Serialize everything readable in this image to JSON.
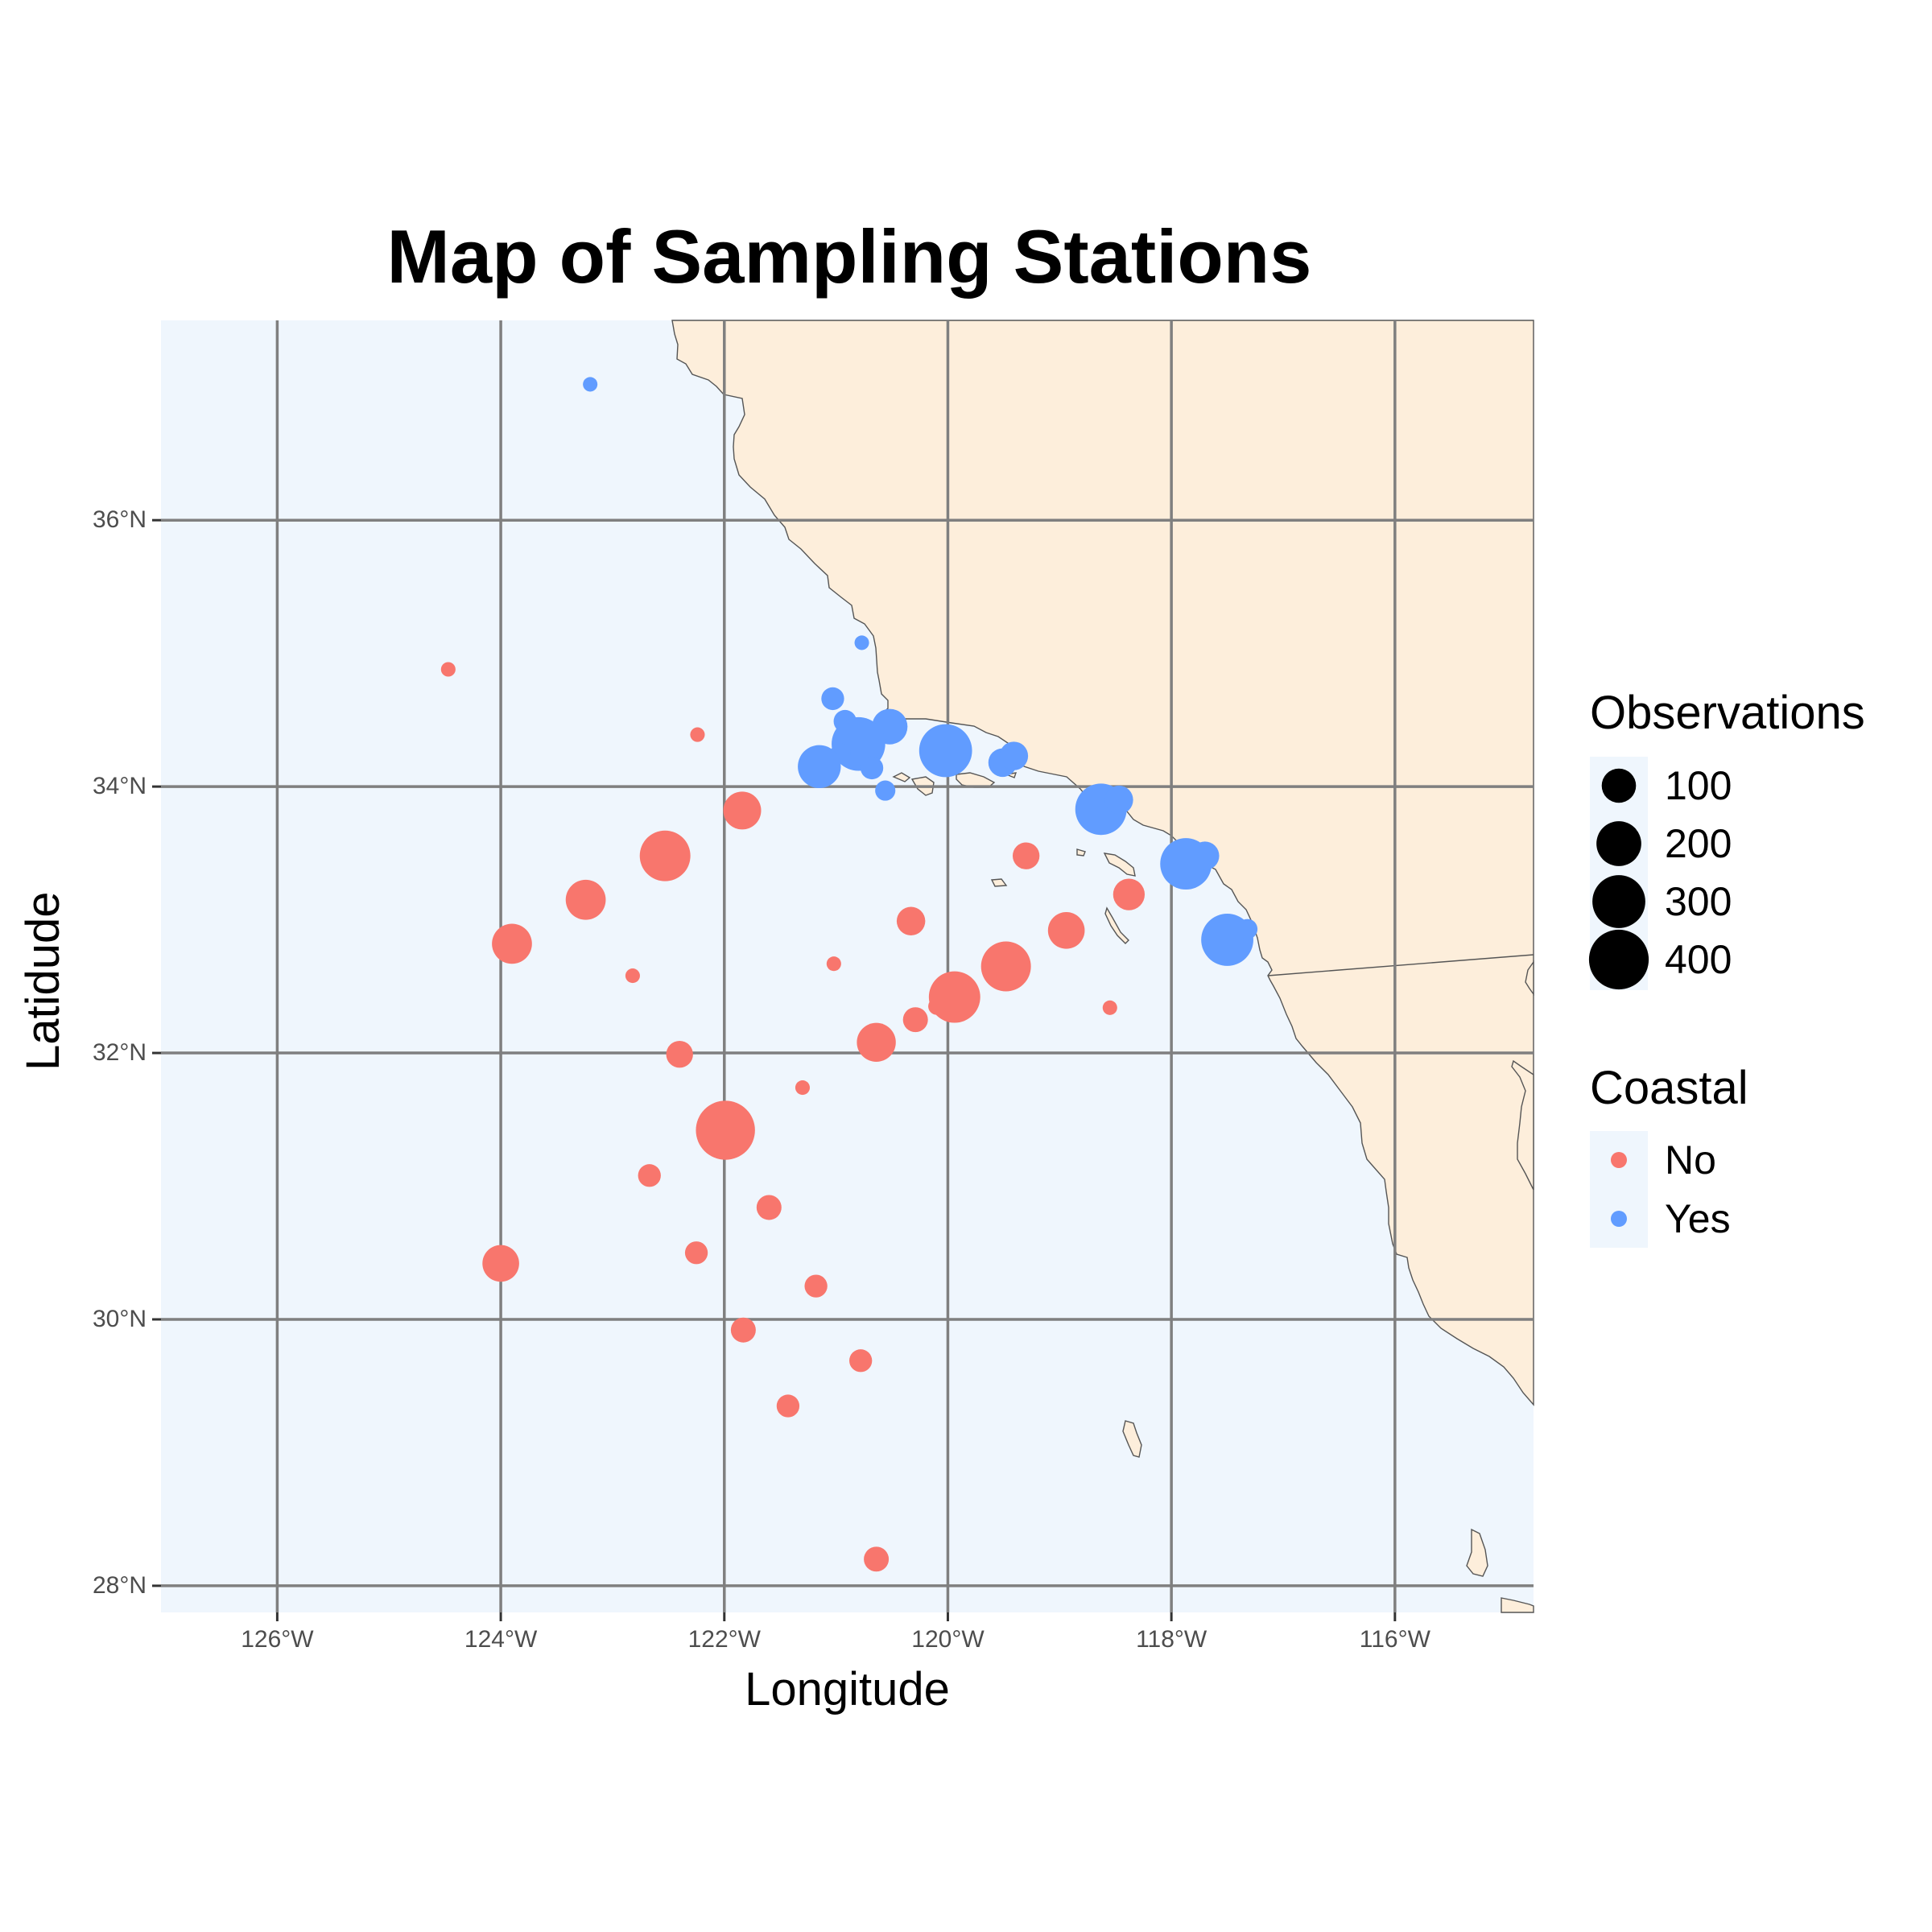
{
  "title": "Map of Sampling Stations",
  "xlabel": "Longitude",
  "ylabel": "Latidude",
  "x_ticks": [
    "126°W",
    "124°W",
    "122°W",
    "120°W",
    "118°W",
    "116°W"
  ],
  "y_ticks": [
    "36°N",
    "34°N",
    "32°N",
    "30°N",
    "28°N"
  ],
  "colors": {
    "ocean": "#EFF6FD",
    "land": "#FDEEDB",
    "coast": "#555555",
    "grid": "#7F7F7F",
    "no": "#F8766D",
    "yes": "#619CFF"
  },
  "legend": {
    "size_title": "Observations",
    "size_labels": [
      "100",
      "200",
      "300",
      "400"
    ],
    "color_title": "Coastal",
    "color_labels": [
      "No",
      "Yes"
    ]
  },
  "chart_data": {
    "type": "scatter",
    "title": "Map of Sampling Stations",
    "xlabel": "Longitude",
    "ylabel": "Latidude",
    "xlim": [
      -127.04,
      -114.76
    ],
    "ylim": [
      27.8,
      37.5
    ],
    "grid": true,
    "legend_position": "right",
    "size_legend": [
      100,
      200,
      300,
      400
    ],
    "series": [
      {
        "name": "No",
        "points": [
          {
            "lon": -124.47,
            "lat": 34.88,
            "obs": 5
          },
          {
            "lon": -122.24,
            "lat": 34.39,
            "obs": 5
          },
          {
            "lon": -121.84,
            "lat": 33.82,
            "obs": 130
          },
          {
            "lon": -122.53,
            "lat": 33.48,
            "obs": 270
          },
          {
            "lon": -123.24,
            "lat": 33.15,
            "obs": 150
          },
          {
            "lon": -123.9,
            "lat": 32.82,
            "obs": 150
          },
          {
            "lon": -122.82,
            "lat": 32.58,
            "obs": 5
          },
          {
            "lon": -122.4,
            "lat": 31.99,
            "obs": 50
          },
          {
            "lon": -121.99,
            "lat": 31.42,
            "obs": 390
          },
          {
            "lon": -122.67,
            "lat": 31.08,
            "obs": 30
          },
          {
            "lon": -121.6,
            "lat": 30.84,
            "obs": 40
          },
          {
            "lon": -122.25,
            "lat": 30.5,
            "obs": 30
          },
          {
            "lon": -124.0,
            "lat": 30.42,
            "obs": 120
          },
          {
            "lon": -121.18,
            "lat": 30.25,
            "obs": 30
          },
          {
            "lon": -121.83,
            "lat": 29.92,
            "obs": 40
          },
          {
            "lon": -121.43,
            "lat": 29.35,
            "obs": 30
          },
          {
            "lon": -120.78,
            "lat": 29.69,
            "obs": 30
          },
          {
            "lon": -120.64,
            "lat": 28.2,
            "obs": 40
          },
          {
            "lon": -121.3,
            "lat": 31.74,
            "obs": 5
          },
          {
            "lon": -121.02,
            "lat": 32.67,
            "obs": 5
          },
          {
            "lon": -120.33,
            "lat": 32.99,
            "obs": 60
          },
          {
            "lon": -120.64,
            "lat": 32.08,
            "obs": 140
          },
          {
            "lon": -120.29,
            "lat": 32.25,
            "obs": 40
          },
          {
            "lon": -120.1,
            "lat": 32.35,
            "obs": 10
          },
          {
            "lon": -119.94,
            "lat": 32.42,
            "obs": 280
          },
          {
            "lon": -119.48,
            "lat": 32.65,
            "obs": 260
          },
          {
            "lon": -118.94,
            "lat": 32.92,
            "obs": 120
          },
          {
            "lon": -119.3,
            "lat": 33.48,
            "obs": 50
          },
          {
            "lon": -118.38,
            "lat": 33.19,
            "obs": 80
          },
          {
            "lon": -118.55,
            "lat": 32.34,
            "obs": 5
          }
        ]
      },
      {
        "name": "Yes",
        "points": [
          {
            "lon": -123.2,
            "lat": 37.02,
            "obs": 5
          },
          {
            "lon": -120.77,
            "lat": 35.08,
            "obs": 5
          },
          {
            "lon": -121.03,
            "lat": 34.66,
            "obs": 30
          },
          {
            "lon": -120.92,
            "lat": 34.49,
            "obs": 30
          },
          {
            "lon": -120.52,
            "lat": 34.45,
            "obs": 110
          },
          {
            "lon": -120.8,
            "lat": 34.32,
            "obs": 310
          },
          {
            "lon": -120.96,
            "lat": 34.25,
            "obs": 20
          },
          {
            "lon": -120.68,
            "lat": 34.14,
            "obs": 30
          },
          {
            "lon": -121.15,
            "lat": 34.15,
            "obs": 180
          },
          {
            "lon": -120.56,
            "lat": 33.97,
            "obs": 20
          },
          {
            "lon": -120.02,
            "lat": 34.27,
            "obs": 300
          },
          {
            "lon": -119.51,
            "lat": 34.18,
            "obs": 60
          },
          {
            "lon": -119.41,
            "lat": 34.23,
            "obs": 60
          },
          {
            "lon": -118.63,
            "lat": 33.83,
            "obs": 280
          },
          {
            "lon": -118.47,
            "lat": 33.9,
            "obs": 60
          },
          {
            "lon": -117.87,
            "lat": 33.42,
            "obs": 280
          },
          {
            "lon": -117.7,
            "lat": 33.48,
            "obs": 60
          },
          {
            "lon": -117.5,
            "lat": 32.85,
            "obs": 290
          },
          {
            "lon": -117.32,
            "lat": 32.93,
            "obs": 20
          }
        ]
      }
    ]
  }
}
